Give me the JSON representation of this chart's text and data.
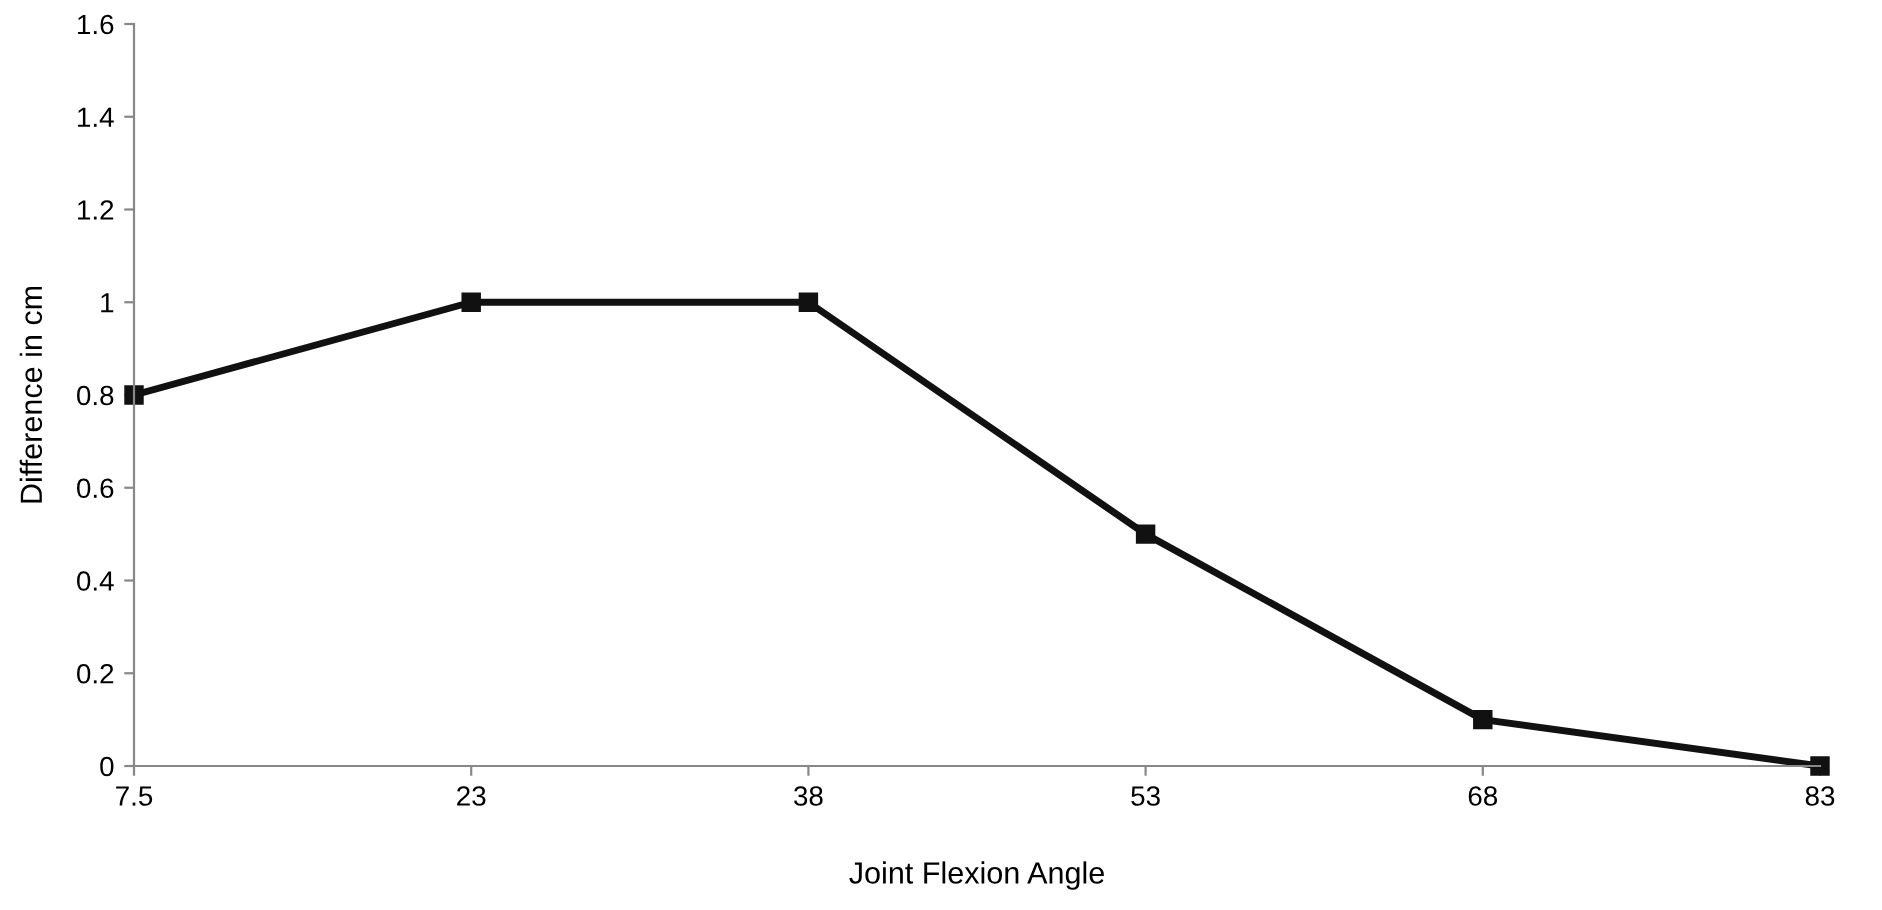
{
  "chart_data": {
    "type": "line",
    "xlabel": "Joint Flexion Angle",
    "ylabel": "Difference in cm",
    "categories": [
      "7.5",
      "23",
      "38",
      "53",
      "68",
      "83"
    ],
    "series": [
      {
        "color": "#111111",
        "values": [
          0.8,
          1,
          1,
          0.5,
          0.1,
          0
        ]
      }
    ],
    "ylim": [
      0,
      1.6
    ],
    "yticks": [
      0,
      0.2,
      0.4,
      0.6,
      0.8,
      1,
      1.2,
      1.4,
      1.6
    ],
    "grid": false,
    "legend": false,
    "marker": "square",
    "line_style": "solid"
  }
}
